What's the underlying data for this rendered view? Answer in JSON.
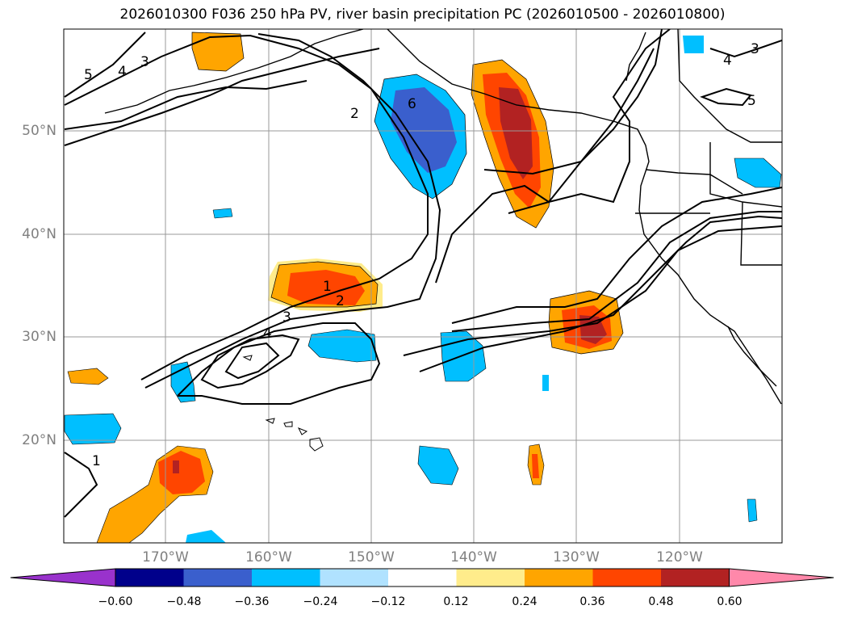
{
  "title": "2026010300 F036 250 hPa PV, river basin precipitation PC (2026010500 - 2026010800)",
  "map": {
    "lat_labels": [
      "50°N",
      "40°N",
      "30°N",
      "20°N"
    ],
    "lon_labels": [
      "170°W",
      "160°W",
      "150°W",
      "140°W",
      "130°W",
      "120°W"
    ],
    "contour_labels": [
      "1",
      "2",
      "3",
      "4",
      "6",
      "2",
      "3",
      "4",
      "5",
      "3",
      "4",
      "5",
      "1"
    ]
  },
  "colorbar": {
    "ticks": [
      "−0.60",
      "−0.48",
      "−0.36",
      "−0.24",
      "−0.12",
      "0.12",
      "0.24",
      "0.36",
      "0.48",
      "0.60"
    ],
    "colors": [
      "#9932cc",
      "#00008b",
      "#3a5fcd",
      "#00bfff",
      "#b0e2ff",
      "#ffffff",
      "#ffec8b",
      "#ffa500",
      "#ff4500",
      "#b22222",
      "#ff88aa"
    ]
  }
}
